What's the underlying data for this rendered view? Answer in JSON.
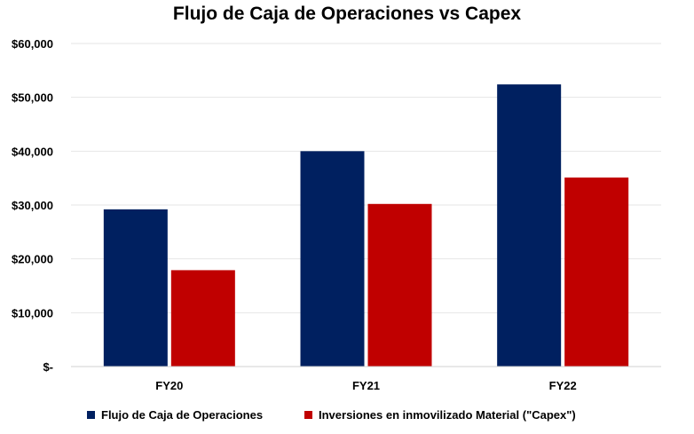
{
  "chart_data": {
    "type": "bar",
    "title": "Flujo de Caja de Operaciones vs Capex",
    "categories": [
      "FY20",
      "FY21",
      "FY22"
    ],
    "series": [
      {
        "name": "Flujo de Caja de Operaciones",
        "values": [
          29200,
          40000,
          52400
        ],
        "color": "#002060"
      },
      {
        "name": "Inversiones en inmovilizado Material (\"Capex\")",
        "values": [
          17900,
          30200,
          35100
        ],
        "color": "#C00000"
      }
    ],
    "ylim": [
      0,
      60000
    ],
    "yticks": [
      0,
      10000,
      20000,
      30000,
      40000,
      50000,
      60000
    ],
    "ytick_labels": [
      "$-",
      "$10,000",
      "$20,000",
      "$30,000",
      "$40,000",
      "$50,000",
      "$60,000"
    ],
    "xlabel": "",
    "ylabel": "",
    "grid": true,
    "legend": "bottom"
  }
}
